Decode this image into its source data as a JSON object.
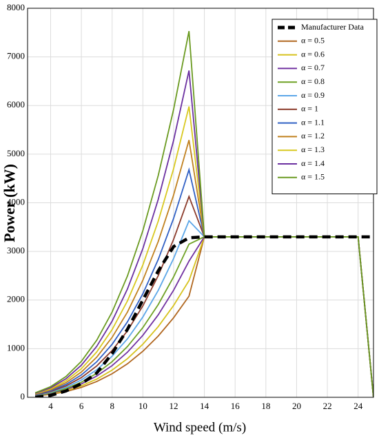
{
  "chart_data": {
    "type": "line",
    "x_label": "Wind speed (m/s)",
    "y_label": "Power (kW)",
    "x": [
      3,
      4,
      5,
      6,
      7,
      8,
      9,
      10,
      11,
      12,
      13,
      14,
      15,
      16,
      17,
      18,
      19,
      20,
      21,
      22,
      23,
      24,
      25
    ],
    "xlim": [
      2.5,
      25
    ],
    "xticks": [
      4,
      6,
      8,
      10,
      12,
      14,
      16,
      18,
      20,
      22,
      24
    ],
    "ylim": [
      0,
      8000
    ],
    "yticks": [
      0,
      1000,
      2000,
      3000,
      4000,
      5000,
      6000,
      7000,
      8000
    ],
    "grid": true,
    "legend": "upper-right",
    "series": [
      {
        "name": "Manufacturer Data",
        "color": "#000000",
        "dashed": true,
        "values": [
          0,
          40,
          130,
          280,
          500,
          900,
          1400,
          2000,
          2600,
          3100,
          3280,
          3300,
          3300,
          3300,
          3300,
          3300,
          3300,
          3300,
          3300,
          3300,
          3300,
          3300,
          3300
        ]
      },
      {
        "name": "α = 0.5",
        "color": "#b0661e",
        "values": [
          26,
          61,
          118,
          204,
          325,
          485,
          690,
          947,
          1260,
          1636,
          2080,
          3300,
          3300,
          3300,
          3300,
          3300,
          3300,
          3300,
          3300,
          3300,
          3300,
          3300,
          0
        ]
      },
      {
        "name": "α = 0.6",
        "color": "#d6c21c",
        "values": [
          30,
          70,
          137,
          236,
          375,
          559,
          796,
          1092,
          1454,
          1888,
          2400,
          3300,
          3300,
          3300,
          3300,
          3300,
          3300,
          3300,
          3300,
          3300,
          3300,
          3300,
          0
        ]
      },
      {
        "name": "α = 0.7",
        "color": "#7030a0",
        "values": [
          34,
          81,
          159,
          275,
          437,
          652,
          929,
          1275,
          1696,
          2202,
          2800,
          3300,
          3300,
          3300,
          3300,
          3300,
          3300,
          3300,
          3300,
          3300,
          3300,
          3300,
          0
        ]
      },
      {
        "name": "α = 0.8",
        "color": "#6ea124",
        "values": [
          39,
          92,
          179,
          310,
          492,
          734,
          1045,
          1434,
          1908,
          2477,
          3150,
          3300,
          3300,
          3300,
          3300,
          3300,
          3300,
          3300,
          3300,
          3300,
          3300,
          3300,
          0
        ]
      },
      {
        "name": "α = 0.9",
        "color": "#5ba6e8",
        "values": [
          45,
          106,
          207,
          357,
          567,
          846,
          1204,
          1652,
          2199,
          2855,
          3630,
          3300,
          3300,
          3300,
          3300,
          3300,
          3300,
          3300,
          3300,
          3300,
          3300,
          3300,
          0
        ]
      },
      {
        "name": "α = 1",
        "color": "#8b3a2a",
        "values": [
          51,
          120,
          235,
          406,
          645,
          962,
          1370,
          1880,
          2502,
          3248,
          4130,
          3300,
          3300,
          3300,
          3300,
          3300,
          3300,
          3300,
          3300,
          3300,
          3300,
          3300,
          0
        ]
      },
      {
        "name": "α = 1.1",
        "color": "#2f5fc4",
        "values": [
          58,
          136,
          266,
          460,
          731,
          1090,
          1553,
          2130,
          2835,
          3681,
          4680,
          3300,
          3300,
          3300,
          3300,
          3300,
          3300,
          3300,
          3300,
          3300,
          3300,
          3300,
          0
        ]
      },
      {
        "name": "α = 1.2",
        "color": "#c0801e",
        "values": [
          65,
          154,
          301,
          520,
          826,
          1233,
          1755,
          2408,
          3205,
          4161,
          5290,
          3300,
          3300,
          3300,
          3300,
          3300,
          3300,
          3300,
          3300,
          3300,
          3300,
          3300,
          0
        ]
      },
      {
        "name": "α = 1.3",
        "color": "#d8c81e",
        "values": [
          74,
          174,
          340,
          588,
          933,
          1393,
          1984,
          2722,
          3623,
          4703,
          5980,
          3300,
          3300,
          3300,
          3300,
          3300,
          3300,
          3300,
          3300,
          3300,
          3300,
          3300,
          0
        ]
      },
      {
        "name": "α = 1.4",
        "color": "#6a2fa0",
        "values": [
          83,
          196,
          382,
          661,
          1049,
          1566,
          2230,
          3059,
          4071,
          5285,
          6720,
          3300,
          3300,
          3300,
          3300,
          3300,
          3300,
          3300,
          3300,
          3300,
          3300,
          3300,
          0
        ]
      },
      {
        "name": "α = 1.5",
        "color": "#6a9a20",
        "values": [
          93,
          219,
          428,
          740,
          1175,
          1754,
          2498,
          3428,
          4562,
          5922,
          7530,
          3300,
          3300,
          3300,
          3300,
          3300,
          3300,
          3300,
          3300,
          3300,
          3300,
          3300,
          0
        ]
      }
    ]
  }
}
